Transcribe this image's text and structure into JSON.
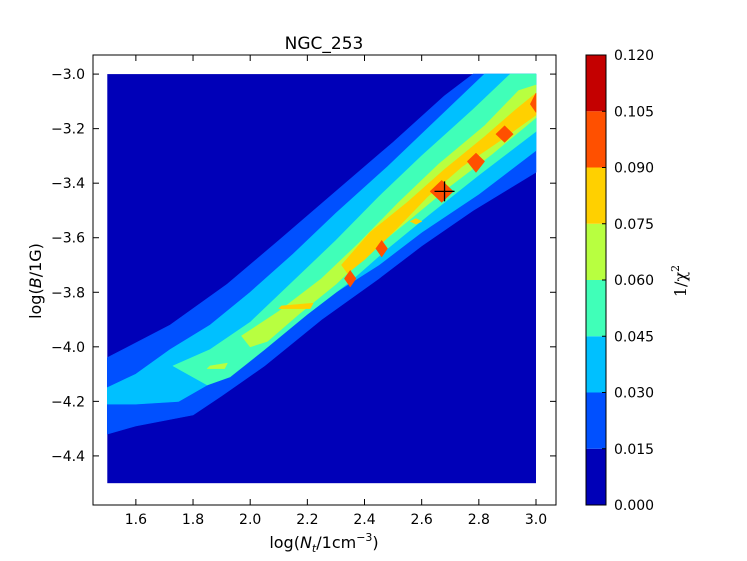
{
  "chart_data": {
    "type": "contour",
    "title": "NGC_253",
    "xlabel": "log(N_t/1cm^-3)",
    "ylabel": "log(B/1G)",
    "xlim": [
      1.45,
      3.07
    ],
    "ylim": [
      -4.58,
      -2.93
    ],
    "xticks": [
      1.6,
      1.8,
      2.0,
      2.2,
      2.4,
      2.6,
      2.8,
      3.0
    ],
    "xtick_labels": [
      "1.6",
      "1.8",
      "2.0",
      "2.2",
      "2.4",
      "2.6",
      "2.8",
      "3.0"
    ],
    "yticks": [
      -3.0,
      -3.2,
      -3.4,
      -3.6,
      -3.8,
      -4.0,
      -4.2,
      -4.4
    ],
    "ytick_labels": [
      "−3.0",
      "−3.2",
      "−3.4",
      "−3.6",
      "−3.8",
      "−4.0",
      "−4.2",
      "−4.4"
    ],
    "data_extent": {
      "x": [
        1.5,
        3.0
      ],
      "y": [
        -4.5,
        -3.0
      ]
    },
    "colorbar": {
      "label": "1/χ²",
      "levels": [
        0.0,
        0.015,
        0.03,
        0.045,
        0.06,
        0.075,
        0.09,
        0.105,
        0.12
      ],
      "level_labels": [
        "0.000",
        "0.015",
        "0.030",
        "0.045",
        "0.060",
        "0.075",
        "0.090",
        "0.105",
        "0.120"
      ],
      "colors": [
        "#0000b8",
        "#0050ff",
        "#00c0ff",
        "#40ffb8",
        "#b8ff40",
        "#ffd000",
        "#ff5000",
        "#c40000"
      ]
    },
    "contour_bands": [
      {
        "level": 1,
        "points": [
          [
            1.5,
            -4.04
          ],
          [
            1.72,
            -3.92
          ],
          [
            1.92,
            -3.77
          ],
          [
            2.1,
            -3.61
          ],
          [
            2.3,
            -3.43
          ],
          [
            2.5,
            -3.25
          ],
          [
            2.68,
            -3.08
          ],
          [
            2.78,
            -3.0
          ],
          [
            3.0,
            -3.0
          ],
          [
            3.0,
            -3.36
          ],
          [
            2.78,
            -3.5
          ],
          [
            2.6,
            -3.63
          ],
          [
            2.45,
            -3.75
          ],
          [
            2.25,
            -3.9
          ],
          [
            2.05,
            -4.07
          ],
          [
            1.9,
            -4.18
          ],
          [
            1.8,
            -4.25
          ],
          [
            1.6,
            -4.29
          ],
          [
            1.5,
            -4.32
          ]
        ]
      },
      {
        "level": 2,
        "points": [
          [
            1.5,
            -4.15
          ],
          [
            1.6,
            -4.1
          ],
          [
            1.72,
            -4.01
          ],
          [
            1.86,
            -3.92
          ],
          [
            2.0,
            -3.8
          ],
          [
            2.15,
            -3.66
          ],
          [
            2.3,
            -3.51
          ],
          [
            2.48,
            -3.34
          ],
          [
            2.66,
            -3.16
          ],
          [
            2.82,
            -3.0
          ],
          [
            3.0,
            -3.0
          ],
          [
            3.0,
            -3.28
          ],
          [
            2.8,
            -3.44
          ],
          [
            2.6,
            -3.58
          ],
          [
            2.45,
            -3.7
          ],
          [
            2.3,
            -3.8
          ],
          [
            2.15,
            -3.92
          ],
          [
            2.0,
            -4.03
          ],
          [
            1.85,
            -4.14
          ],
          [
            1.75,
            -4.2
          ],
          [
            1.6,
            -4.21
          ],
          [
            1.5,
            -4.21
          ]
        ]
      },
      {
        "level": 3,
        "points": [
          [
            1.73,
            -4.07
          ],
          [
            1.86,
            -4.01
          ],
          [
            2.0,
            -3.91
          ],
          [
            2.15,
            -3.76
          ],
          [
            2.3,
            -3.61
          ],
          [
            2.45,
            -3.45
          ],
          [
            2.6,
            -3.3
          ],
          [
            2.78,
            -3.13
          ],
          [
            2.91,
            -3.0
          ],
          [
            3.0,
            -3.0
          ],
          [
            3.0,
            -3.21
          ],
          [
            2.8,
            -3.37
          ],
          [
            2.62,
            -3.52
          ],
          [
            2.48,
            -3.64
          ],
          [
            2.35,
            -3.76
          ],
          [
            2.2,
            -3.88
          ],
          [
            2.05,
            -4.01
          ],
          [
            1.93,
            -4.11
          ],
          [
            1.85,
            -4.14
          ]
        ]
      },
      {
        "level": 4,
        "points": [
          [
            1.97,
            -3.96
          ],
          [
            2.1,
            -3.87
          ],
          [
            2.25,
            -3.75
          ],
          [
            2.38,
            -3.62
          ],
          [
            2.52,
            -3.47
          ],
          [
            2.66,
            -3.33
          ],
          [
            2.82,
            -3.19
          ],
          [
            2.94,
            -3.06
          ],
          [
            3.0,
            -3.04
          ],
          [
            3.0,
            -3.16
          ],
          [
            2.85,
            -3.29
          ],
          [
            2.7,
            -3.41
          ],
          [
            2.55,
            -3.54
          ],
          [
            2.42,
            -3.65
          ],
          [
            2.3,
            -3.77
          ],
          [
            2.17,
            -3.88
          ],
          [
            2.06,
            -3.98
          ],
          [
            2.0,
            -4.0
          ]
        ]
      },
      {
        "level": 5,
        "points": [
          [
            2.32,
            -3.7
          ],
          [
            2.42,
            -3.58
          ],
          [
            2.55,
            -3.47
          ],
          [
            2.68,
            -3.35
          ],
          [
            2.82,
            -3.23
          ],
          [
            2.93,
            -3.13
          ],
          [
            3.0,
            -3.07
          ],
          [
            3.0,
            -3.15
          ],
          [
            2.88,
            -3.24
          ],
          [
            2.74,
            -3.34
          ],
          [
            2.62,
            -3.45
          ],
          [
            2.5,
            -3.58
          ],
          [
            2.4,
            -3.68
          ],
          [
            2.34,
            -3.73
          ]
        ]
      },
      {
        "level": 4,
        "points": [
          [
            1.86,
            -4.07
          ],
          [
            1.92,
            -4.06
          ],
          [
            1.91,
            -4.08
          ],
          [
            1.85,
            -4.08
          ]
        ]
      },
      {
        "level": 5,
        "points": [
          [
            2.11,
            -3.85
          ],
          [
            2.22,
            -3.84
          ],
          [
            2.21,
            -3.86
          ],
          [
            2.1,
            -3.86
          ]
        ]
      },
      {
        "level": 5,
        "points": [
          [
            2.58,
            -3.53
          ],
          [
            2.6,
            -3.54
          ],
          [
            2.58,
            -3.55
          ],
          [
            2.56,
            -3.54
          ]
        ]
      },
      {
        "level": 6,
        "points": [
          [
            2.35,
            -3.72
          ],
          [
            2.37,
            -3.75
          ],
          [
            2.35,
            -3.78
          ],
          [
            2.33,
            -3.75
          ]
        ]
      },
      {
        "level": 6,
        "points": [
          [
            2.46,
            -3.61
          ],
          [
            2.48,
            -3.64
          ],
          [
            2.46,
            -3.67
          ],
          [
            2.44,
            -3.64
          ]
        ]
      },
      {
        "level": 6,
        "points": [
          [
            2.67,
            -3.39
          ],
          [
            2.71,
            -3.43
          ],
          [
            2.67,
            -3.47
          ],
          [
            2.63,
            -3.43
          ]
        ]
      },
      {
        "level": 6,
        "points": [
          [
            2.79,
            -3.29
          ],
          [
            2.82,
            -3.32
          ],
          [
            2.79,
            -3.36
          ],
          [
            2.76,
            -3.32
          ]
        ]
      },
      {
        "level": 6,
        "points": [
          [
            2.89,
            -3.19
          ],
          [
            2.92,
            -3.22
          ],
          [
            2.89,
            -3.25
          ],
          [
            2.86,
            -3.22
          ]
        ]
      },
      {
        "level": 6,
        "points": [
          [
            3.0,
            -3.07
          ],
          [
            2.98,
            -3.11
          ],
          [
            3.0,
            -3.14
          ]
        ]
      }
    ],
    "best_fit_marker": {
      "x": 2.68,
      "y": -3.43
    }
  }
}
